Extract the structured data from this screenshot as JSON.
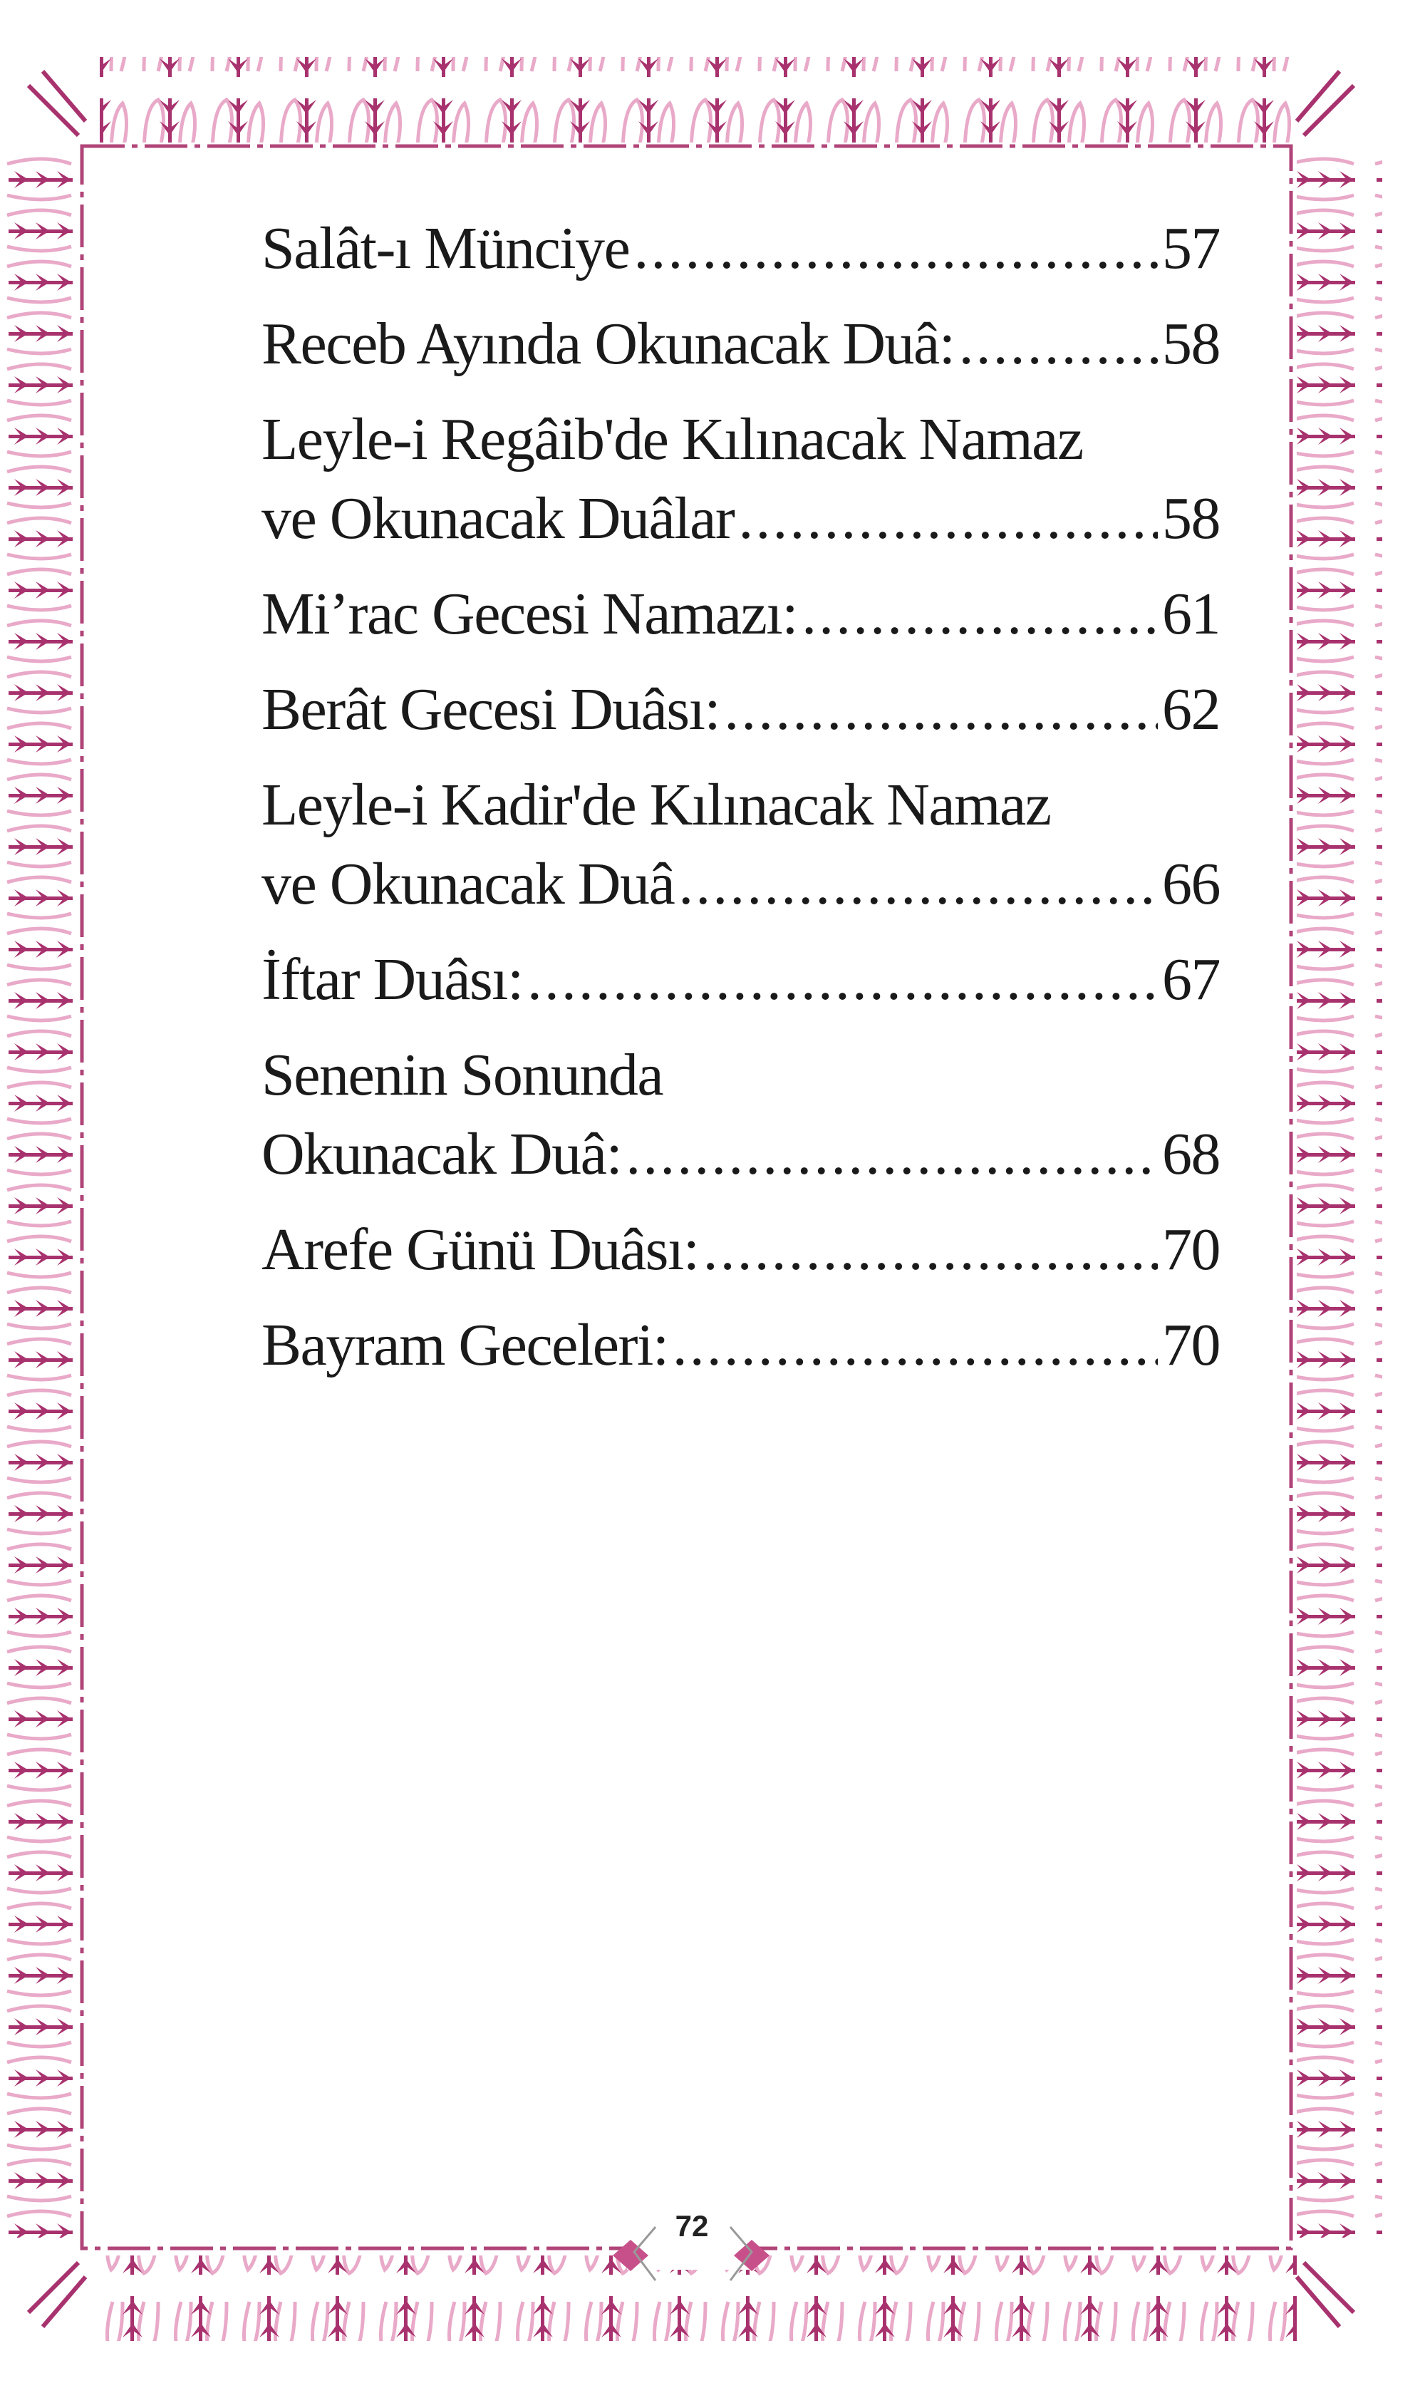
{
  "toc": [
    {
      "lines": [
        "Salât-ı Münciye"
      ],
      "page": "57"
    },
    {
      "lines": [
        "Receb Ayında Okunacak Duâ:"
      ],
      "page": "58"
    },
    {
      "lines": [
        "Leyle-i Regâib'de Kılınacak Namaz",
        "ve Okunacak Duâlar"
      ],
      "page": "58"
    },
    {
      "lines": [
        "Mi’rac Gecesi Namazı:"
      ],
      "page": "61"
    },
    {
      "lines": [
        "Berât Gecesi Duâsı:"
      ],
      "page": "62"
    },
    {
      "lines": [
        "Leyle-i Kadir'de Kılınacak Namaz",
        "ve Okunacak Duâ"
      ],
      "page": "66"
    },
    {
      "lines": [
        "İftar Duâsı:"
      ],
      "page": "67"
    },
    {
      "lines": [
        "Senenin Sonunda",
        "Okunacak Duâ:"
      ],
      "page": "68"
    },
    {
      "lines": [
        "Arefe Günü Duâsı:"
      ],
      "page": "70"
    },
    {
      "lines": [
        "Bayram Geceleri:"
      ],
      "page": "70"
    }
  ],
  "page_number": "72",
  "colors": {
    "border_dark": "#a8326e",
    "border_light": "#e9a9c8",
    "text": "#1a1a1a"
  },
  "decoration": "floral-tulip-border"
}
